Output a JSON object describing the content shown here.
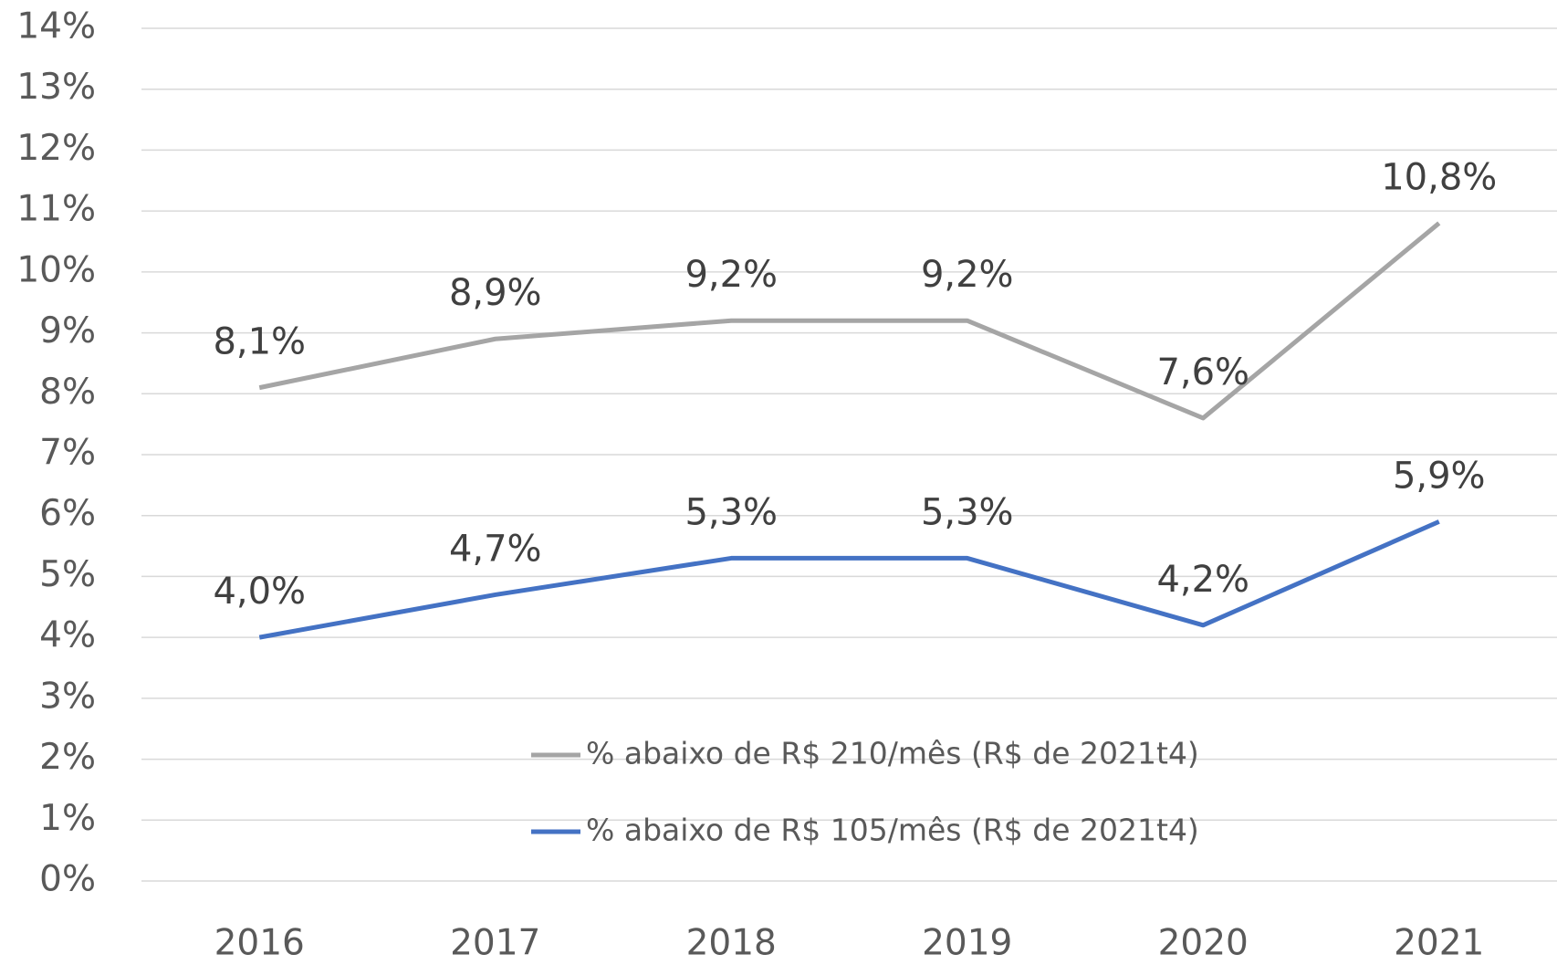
{
  "chart_data": {
    "type": "line",
    "categories": [
      "2016",
      "2017",
      "2018",
      "2019",
      "2020",
      "2021"
    ],
    "series": [
      {
        "name": "% abaixo de R$ 210/mês (R$ de 2021t4)",
        "color": "#a5a5a5",
        "values": [
          8.1,
          8.9,
          9.2,
          9.2,
          7.6,
          10.8
        ],
        "value_labels": [
          "8,1%",
          "8,9%",
          "9,2%",
          "9,2%",
          "7,6%",
          "10,8%"
        ]
      },
      {
        "name": "% abaixo de R$ 105/mês (R$ de 2021t4)",
        "color": "#4472c4",
        "values": [
          4.0,
          4.7,
          5.3,
          5.3,
          4.2,
          5.9
        ],
        "value_labels": [
          "4,0%",
          "4,7%",
          "5,3%",
          "5,3%",
          "4,2%",
          "5,9%"
        ]
      }
    ],
    "ylim": [
      0,
      14
    ],
    "yticks": [
      {
        "value": 0,
        "label": "0%"
      },
      {
        "value": 1,
        "label": "1%"
      },
      {
        "value": 2,
        "label": "2%"
      },
      {
        "value": 3,
        "label": "3%"
      },
      {
        "value": 4,
        "label": "4%"
      },
      {
        "value": 5,
        "label": "5%"
      },
      {
        "value": 6,
        "label": "6%"
      },
      {
        "value": 7,
        "label": "7%"
      },
      {
        "value": 8,
        "label": "8%"
      },
      {
        "value": 9,
        "label": "9%"
      },
      {
        "value": 10,
        "label": "10%"
      },
      {
        "value": 11,
        "label": "11%"
      },
      {
        "value": 12,
        "label": "12%"
      },
      {
        "value": 13,
        "label": "13%"
      },
      {
        "value": 14,
        "label": "14%"
      }
    ],
    "grid": true
  }
}
